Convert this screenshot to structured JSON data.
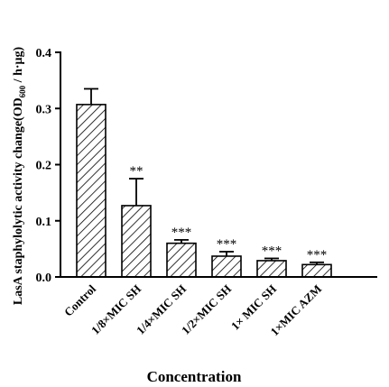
{
  "chart_data": {
    "type": "bar",
    "categories": [
      "Control",
      "1/8×MIC SH",
      "1/4×MIC SH",
      "1/2×MIC SH",
      "1× MIC SH",
      "1×MIC AZM"
    ],
    "values": [
      0.307,
      0.127,
      0.06,
      0.037,
      0.029,
      0.022
    ],
    "errors": [
      0.028,
      0.048,
      0.006,
      0.008,
      0.004,
      0.004
    ],
    "significance": [
      "",
      "**",
      "***",
      "***",
      "***",
      "***"
    ],
    "yticks": [
      "0.0",
      "0.1",
      "0.2",
      "0.3",
      "0.4"
    ],
    "ylim": [
      0,
      0.4
    ],
    "xlabel": "Concentration",
    "ylabel_main": "LasA staphylolytic activity change(OD",
    "ylabel_sub": "600",
    "ylabel_tail": " / h·μg)",
    "bar_pattern": "diagonal-hatch",
    "bar_color": "#000000",
    "grid": false
  }
}
